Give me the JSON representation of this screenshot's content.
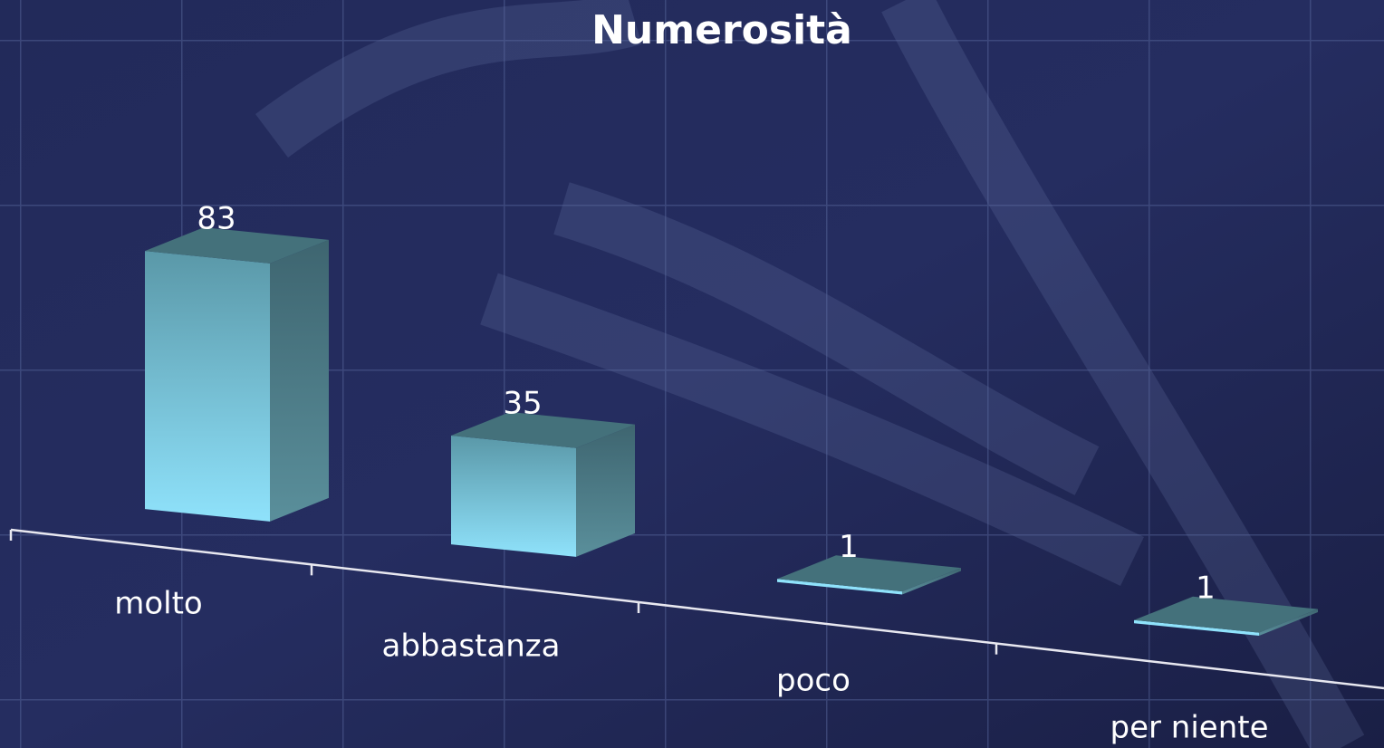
{
  "chart_data": {
    "type": "bar3d",
    "title": "Numerosità",
    "categories": [
      "molto",
      "abbastanza",
      "poco",
      "per niente"
    ],
    "values": [
      83,
      35,
      1,
      1
    ]
  }
}
